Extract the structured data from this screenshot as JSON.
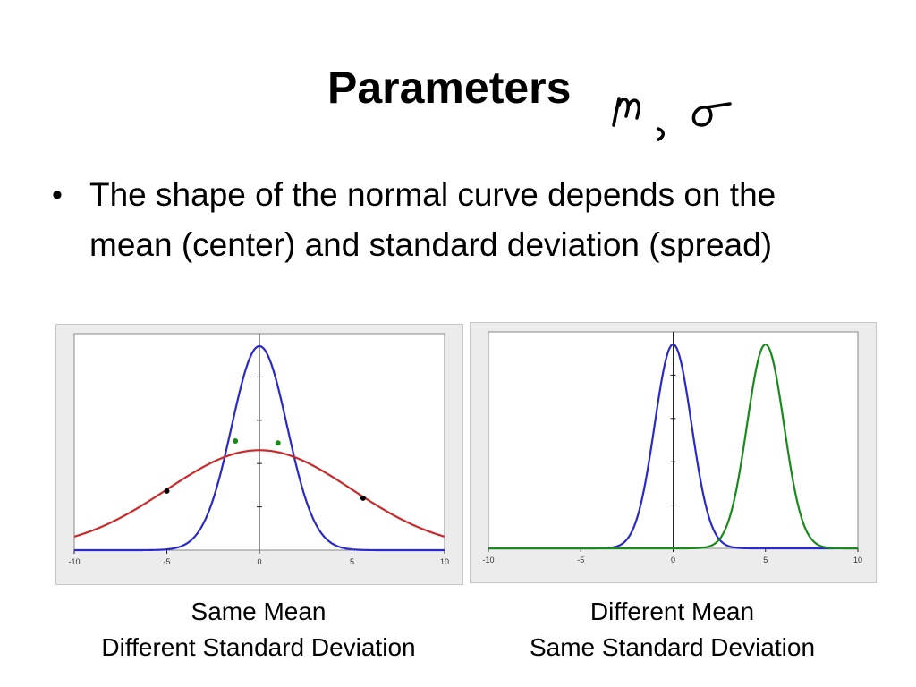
{
  "slide": {
    "title": "Parameters",
    "handwritten_annotation": "μ, σ",
    "bullet": "The shape of the normal curve depends on the mean (center) and standard deviation (spread)"
  },
  "chart_data": [
    {
      "type": "line",
      "title": "",
      "xlabel": "",
      "ylabel": "",
      "xlim": [
        -10,
        10
      ],
      "x_ticks": [
        "-10",
        "-5",
        "0",
        "5",
        "10"
      ],
      "grid": false,
      "series": [
        {
          "kind": "normal",
          "mean": 0,
          "sd": 1.5,
          "peak": 1.0,
          "color": "#2a2acc"
        },
        {
          "kind": "normal",
          "mean": 0,
          "sd": 5.0,
          "peak": 0.49,
          "color": "#cc2a2a"
        }
      ],
      "markers": [
        {
          "x": -1.3,
          "y": 0.535,
          "color": "#1a8a1a"
        },
        {
          "x": 1.0,
          "y": 0.525,
          "color": "#1a8a1a"
        },
        {
          "x": -5,
          "y": 0.29,
          "color": "#000000"
        },
        {
          "x": 5.6,
          "y": 0.255,
          "color": "#000000"
        }
      ],
      "caption": [
        "Same Mean",
        "Different Standard Deviation"
      ]
    },
    {
      "type": "line",
      "title": "",
      "xlabel": "",
      "ylabel": "",
      "xlim": [
        -10,
        10
      ],
      "x_ticks": [
        "-10",
        "-5",
        "0",
        "5",
        "10"
      ],
      "grid": false,
      "series": [
        {
          "kind": "normal",
          "mean": 0,
          "sd": 1.0,
          "peak": 1.0,
          "color": "#2a2acc"
        },
        {
          "kind": "normal",
          "mean": 5,
          "sd": 1.0,
          "peak": 1.0,
          "color": "#1a8a1a"
        }
      ],
      "markers": [],
      "caption": [
        "Different Mean",
        "Same Standard Deviation"
      ]
    }
  ]
}
